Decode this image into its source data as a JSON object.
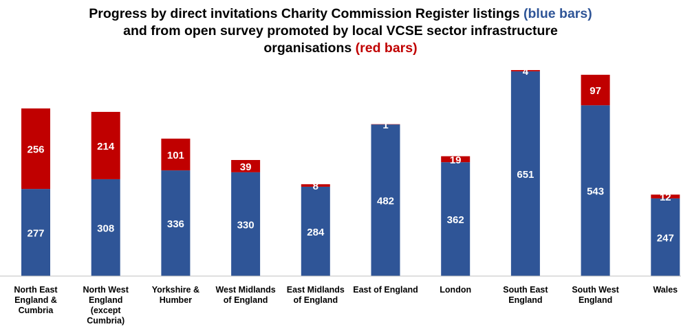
{
  "title": {
    "line1": "Progress by direct invitations Charity Commission Register listings",
    "line1_highlight": "(blue bars)",
    "line2": "and from open survey promoted by local VCSE sector infrastructure",
    "line3": "organisations",
    "line3_highlight": "(red bars)"
  },
  "colors": {
    "blue": "#2f5597",
    "red": "#c00000",
    "axis": "#bfbfbf"
  },
  "chart_data": {
    "type": "bar",
    "stacked": true,
    "categories": [
      [
        "North East",
        "England &",
        "Cumbria"
      ],
      [
        "North West",
        "England",
        "(except",
        "Cumbria)"
      ],
      [
        "Yorkshire &",
        "Humber"
      ],
      [
        "West Midlands",
        "of England"
      ],
      [
        "East Midlands",
        "of England"
      ],
      [
        "East of England"
      ],
      [
        "London"
      ],
      [
        "South East",
        "England"
      ],
      [
        "South West",
        "England"
      ],
      [
        "Wales"
      ]
    ],
    "series": [
      {
        "color": "#2f5597",
        "values": [
          277,
          308,
          336,
          330,
          284,
          482,
          362,
          651,
          543,
          247
        ]
      },
      {
        "color": "#c00000",
        "values": [
          256,
          214,
          101,
          39,
          8,
          1,
          19,
          4,
          97,
          12
        ]
      }
    ],
    "ylim": [
      0,
      660
    ],
    "grid": false,
    "legend": "none"
  }
}
